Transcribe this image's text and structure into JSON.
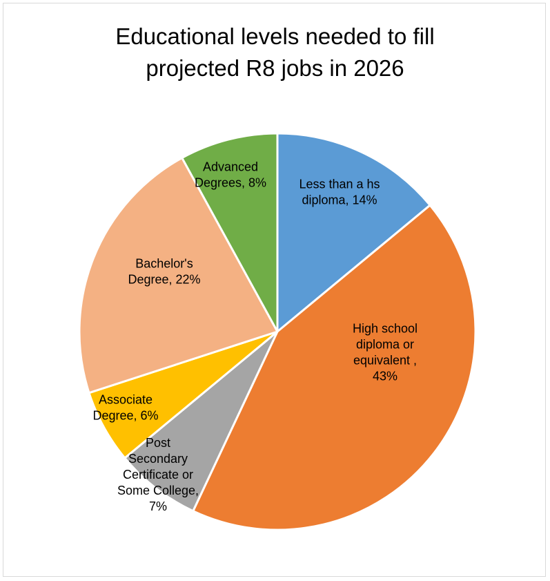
{
  "chart_data": {
    "type": "pie",
    "title_lines": [
      "Educational levels needed to fill",
      "projected R8 jobs in 2026"
    ],
    "slices": [
      {
        "category": "Less than a hs diploma",
        "value": 14,
        "color": "#5b9bd5",
        "label_lines": [
          "Less than a hs",
          "diploma, 14%"
        ]
      },
      {
        "category": "High school diploma or equivalent",
        "value": 43,
        "color": "#ed7d31",
        "label_lines": [
          "High school",
          "diploma or",
          "equivalent ,",
          "43%"
        ]
      },
      {
        "category": "Post Secondary Certificate or Some College",
        "value": 7,
        "color": "#a5a5a5",
        "label_lines": [
          "Post",
          "Secondary",
          "Certificate or",
          "Some College,",
          "7%"
        ]
      },
      {
        "category": "Associate Degree",
        "value": 6,
        "color": "#ffc000",
        "label_lines": [
          "Associate",
          "Degree, 6%"
        ]
      },
      {
        "category": "Bachelor's Degree",
        "value": 22,
        "color": "#f4b183",
        "label_lines": [
          "Bachelor's",
          "Degree, 22%"
        ]
      },
      {
        "category": "Advanced Degrees",
        "value": 8,
        "color": "#70ad47",
        "label_lines": [
          "Advanced",
          "Degrees, 8%"
        ]
      }
    ],
    "legend": "none",
    "start_angle": "12 o'clock",
    "direction": "clockwise"
  }
}
